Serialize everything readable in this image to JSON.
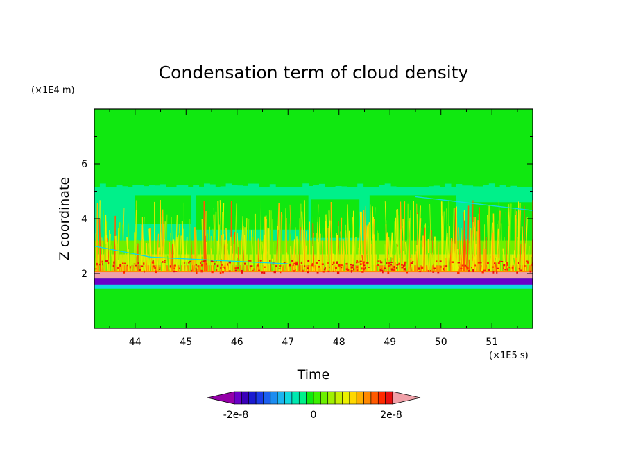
{
  "chart_data": {
    "type": "heatmap",
    "title": "Condensation term of cloud density",
    "xlabel": "Time",
    "ylabel": "Z coordinate",
    "x_unit": "(×1E5 s)",
    "y_unit": "(×1E4 m)",
    "xlim": [
      43.2,
      51.8
    ],
    "ylim": [
      0,
      8
    ],
    "x_ticks": [
      44,
      45,
      46,
      47,
      48,
      49,
      50,
      51
    ],
    "y_ticks": [
      2,
      4,
      6
    ],
    "colorbar": {
      "tick_labels": [
        "-2e-8",
        "0",
        "2e-8"
      ],
      "tick_values": [
        -2e-08,
        0,
        2e-08
      ],
      "colors": [
        "#9400a8",
        "#6a00c8",
        "#3a00b8",
        "#1a1ad0",
        "#1a3ae8",
        "#1c60f0",
        "#1c8cf0",
        "#1cb4f0",
        "#10d8e0",
        "#00e8b0",
        "#00f08a",
        "#10e810",
        "#3cf000",
        "#6cf000",
        "#a0f000",
        "#c8f000",
        "#ecf000",
        "#ffd800",
        "#ffb000",
        "#ff8800",
        "#ff5a00",
        "#ff2a00",
        "#e81010",
        "#f0a0a8"
      ],
      "extend": "both"
    },
    "regions": [
      {
        "z_range": [
          0,
          1.5
        ],
        "level": "near-zero (+)"
      },
      {
        "z_range": [
          1.5,
          1.75
        ],
        "level": "near-zero (-)"
      },
      {
        "z_range": [
          1.6,
          1.8
        ],
        "level": "strong negative"
      },
      {
        "z_range": [
          1.8,
          2.05
        ],
        "level": "above 2e-8"
      },
      {
        "z_range": [
          2.05,
          2.3
        ],
        "level": "positive 1-2e-8"
      },
      {
        "z_range": [
          2.3,
          4.5
        ],
        "level": "positive streaks 0.3-1e-8"
      },
      {
        "z_range": [
          2.8,
          5.15
        ],
        "level": "near-zero (-)"
      },
      {
        "z_range": [
          5.15,
          8
        ],
        "level": "near-zero (+)"
      }
    ]
  }
}
